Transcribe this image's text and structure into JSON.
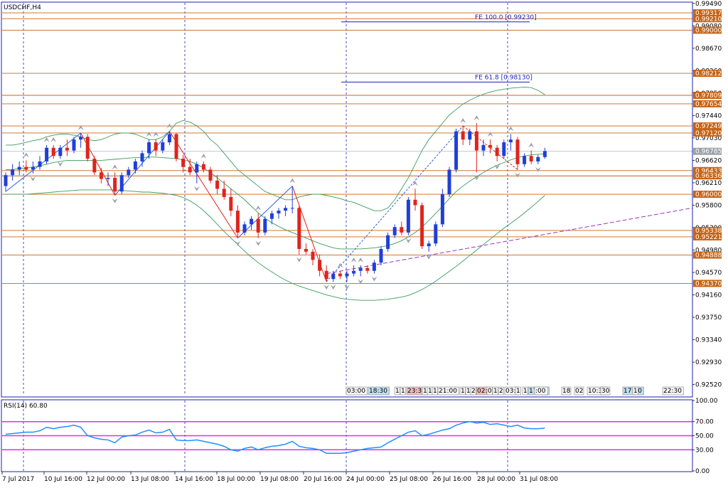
{
  "window": {
    "title": "USDCHF,H4"
  },
  "colors": {
    "background": "#ffffff",
    "frame": "#1f1fb4",
    "bull": "#1f3fd8",
    "bear": "#e0241c",
    "level": "#c86414",
    "level_label_bg": "#c86414",
    "current_price_bg": "#9aa0a8",
    "bollinger": "#3c9c5a",
    "zigzag_red": "#e0241c",
    "zigzag_blue": "#3060e0",
    "trendline": "#a030c0",
    "fe_line": "#1f1fb4",
    "rsi_line": "#1e90ff",
    "rsi_level": "#e030e0",
    "grid_dash": "#1f1fb4",
    "arrow": "#9aa0a8"
  },
  "chart_data": [
    {
      "type": "candlestick",
      "symbol": "USDCHF",
      "timeframe": "H4",
      "title": "USDCHF,H4",
      "ylim": [
        0.9232,
        0.995
      ],
      "y_ticks": [
        "0.99490",
        "0.99080",
        "0.98670",
        "0.98260",
        "0.97850",
        "0.97440",
        "0.97030",
        "0.96620",
        "0.96210",
        "0.95800",
        "0.95390",
        "0.94980",
        "0.94570",
        "0.94160",
        "0.93750",
        "0.93340",
        "0.92930",
        "0.92520"
      ],
      "x_ticks": [
        "7 Jul 2017",
        "10 Jul 16:00",
        "12 Jul 00:00",
        "13 Jul 08:00",
        "14 Jul 16:00",
        "18 Jul 00:00",
        "19 Jul 08:00",
        "20 Jul 16:00",
        "24 Jul 00:00",
        "25 Jul 08:00",
        "26 Jul 16:00",
        "28 Jul 00:00",
        "31 Jul 08:00"
      ],
      "horizontal_levels": [
        "0.99317",
        "0.99210",
        "0.99000",
        "0.98212",
        "0.97809",
        "0.97654",
        "0.97249",
        "0.97120",
        "0.96433",
        "0.96336",
        "0.96000",
        "0.95338",
        "0.95221",
        "0.94888",
        "0.94370"
      ],
      "current_price": "0.96785",
      "fe_levels": [
        {
          "label": "FE 100.0 [0.99230]",
          "value": 0.9923
        },
        {
          "label": "FE 61.8 [0.98130]",
          "value": 0.9813
        }
      ],
      "candles_ohlc": [
        [
          0.9615,
          0.964,
          0.9605,
          0.9635
        ],
        [
          0.9635,
          0.9655,
          0.9625,
          0.9645
        ],
        [
          0.9645,
          0.966,
          0.9635,
          0.965
        ],
        [
          0.965,
          0.9662,
          0.964,
          0.9645
        ],
        [
          0.9645,
          0.966,
          0.9638,
          0.965
        ],
        [
          0.965,
          0.967,
          0.9645,
          0.966
        ],
        [
          0.966,
          0.969,
          0.9655,
          0.9685
        ],
        [
          0.9685,
          0.969,
          0.9665,
          0.967
        ],
        [
          0.967,
          0.969,
          0.9665,
          0.9685
        ],
        [
          0.9685,
          0.97,
          0.967,
          0.968
        ],
        [
          0.968,
          0.9705,
          0.9675,
          0.97
        ],
        [
          0.97,
          0.9712,
          0.9685,
          0.9705
        ],
        [
          0.9705,
          0.971,
          0.966,
          0.9665
        ],
        [
          0.9665,
          0.967,
          0.9635,
          0.964
        ],
        [
          0.964,
          0.9648,
          0.962,
          0.9628
        ],
        [
          0.9628,
          0.964,
          0.9615,
          0.963
        ],
        [
          0.963,
          0.964,
          0.9598,
          0.9605
        ],
        [
          0.9605,
          0.964,
          0.96,
          0.9635
        ],
        [
          0.9635,
          0.965,
          0.963,
          0.9645
        ],
        [
          0.9645,
          0.9665,
          0.9638,
          0.966
        ],
        [
          0.966,
          0.968,
          0.965,
          0.9675
        ],
        [
          0.9675,
          0.97,
          0.9665,
          0.9695
        ],
        [
          0.9695,
          0.97,
          0.967,
          0.968
        ],
        [
          0.968,
          0.97,
          0.9675,
          0.9695
        ],
        [
          0.9695,
          0.9715,
          0.969,
          0.971
        ],
        [
          0.971,
          0.9712,
          0.966,
          0.9665
        ],
        [
          0.9665,
          0.9672,
          0.964,
          0.965
        ],
        [
          0.965,
          0.9665,
          0.9635,
          0.964
        ],
        [
          0.964,
          0.966,
          0.962,
          0.9655
        ],
        [
          0.9655,
          0.966,
          0.964,
          0.9645
        ],
        [
          0.9645,
          0.965,
          0.962,
          0.9625
        ],
        [
          0.9625,
          0.9635,
          0.96,
          0.961
        ],
        [
          0.961,
          0.9625,
          0.959,
          0.9595
        ],
        [
          0.9595,
          0.961,
          0.956,
          0.957
        ],
        [
          0.957,
          0.958,
          0.952,
          0.953
        ],
        [
          0.953,
          0.955,
          0.9525,
          0.9545
        ],
        [
          0.9545,
          0.956,
          0.9535,
          0.9555
        ],
        [
          0.9555,
          0.9565,
          0.952,
          0.953
        ],
        [
          0.953,
          0.956,
          0.9525,
          0.9555
        ],
        [
          0.9555,
          0.957,
          0.9545,
          0.9565
        ],
        [
          0.9565,
          0.9575,
          0.9555,
          0.957
        ],
        [
          0.957,
          0.958,
          0.956,
          0.9575
        ],
        [
          0.9575,
          0.9615,
          0.9565,
          0.9575
        ],
        [
          0.9575,
          0.958,
          0.949,
          0.95
        ],
        [
          0.95,
          0.951,
          0.949,
          0.9495
        ],
        [
          0.9495,
          0.95,
          0.947,
          0.948
        ],
        [
          0.948,
          0.949,
          0.945,
          0.946
        ],
        [
          0.946,
          0.947,
          0.944,
          0.9445
        ],
        [
          0.9445,
          0.946,
          0.944,
          0.9455
        ],
        [
          0.9455,
          0.946,
          0.9445,
          0.945
        ],
        [
          0.945,
          0.946,
          0.944,
          0.9455
        ],
        [
          0.9455,
          0.947,
          0.945,
          0.946
        ],
        [
          0.946,
          0.947,
          0.945,
          0.9465
        ],
        [
          0.9465,
          0.947,
          0.9455,
          0.946
        ],
        [
          0.946,
          0.948,
          0.9455,
          0.9475
        ],
        [
          0.9475,
          0.9505,
          0.947,
          0.95
        ],
        [
          0.95,
          0.953,
          0.9495,
          0.9525
        ],
        [
          0.9525,
          0.9545,
          0.952,
          0.954
        ],
        [
          0.954,
          0.955,
          0.9525,
          0.953
        ],
        [
          0.953,
          0.9595,
          0.9525,
          0.959
        ],
        [
          0.959,
          0.961,
          0.957,
          0.958
        ],
        [
          0.958,
          0.9585,
          0.95,
          0.9505
        ],
        [
          0.9505,
          0.9515,
          0.9495,
          0.951
        ],
        [
          0.951,
          0.955,
          0.9505,
          0.9545
        ],
        [
          0.9545,
          0.961,
          0.954,
          0.96
        ],
        [
          0.96,
          0.965,
          0.9595,
          0.9645
        ],
        [
          0.9645,
          0.972,
          0.964,
          0.9715
        ],
        [
          0.9715,
          0.9725,
          0.969,
          0.97
        ],
        [
          0.97,
          0.972,
          0.969,
          0.9715
        ],
        [
          0.9715,
          0.973,
          0.964,
          0.968
        ],
        [
          0.968,
          0.97,
          0.967,
          0.969
        ],
        [
          0.969,
          0.97,
          0.9675,
          0.9685
        ],
        [
          0.9685,
          0.969,
          0.966,
          0.967
        ],
        [
          0.967,
          0.97,
          0.9665,
          0.9695
        ],
        [
          0.9695,
          0.971,
          0.968,
          0.97
        ],
        [
          0.97,
          0.9705,
          0.9645,
          0.9655
        ],
        [
          0.9655,
          0.9675,
          0.965,
          0.967
        ],
        [
          0.967,
          0.968,
          0.9655,
          0.966
        ],
        [
          0.966,
          0.9672,
          0.9655,
          0.9668
        ],
        [
          0.9668,
          0.9685,
          0.9665,
          0.9679
        ]
      ],
      "bollinger_upper": [
        0.969,
        0.969,
        0.9692,
        0.9695,
        0.9698,
        0.97,
        0.9705,
        0.9708,
        0.971,
        0.971,
        0.9708,
        0.9705,
        0.97,
        0.9698,
        0.97,
        0.9705,
        0.971,
        0.9712,
        0.9712,
        0.971,
        0.9705,
        0.97,
        0.97,
        0.9705,
        0.9715,
        0.973,
        0.9735,
        0.9732,
        0.9725,
        0.9715,
        0.97,
        0.969,
        0.9675,
        0.966,
        0.9645,
        0.9635,
        0.9625,
        0.9615,
        0.9605,
        0.96,
        0.9595,
        0.959,
        0.959,
        0.9595,
        0.9598,
        0.96,
        0.96,
        0.9598,
        0.9595,
        0.9592,
        0.9588,
        0.9585,
        0.958,
        0.9575,
        0.957,
        0.957,
        0.9575,
        0.959,
        0.961,
        0.963,
        0.9655,
        0.968,
        0.97,
        0.9715,
        0.973,
        0.9745,
        0.9755,
        0.9765,
        0.9772,
        0.9778,
        0.9783,
        0.9787,
        0.979,
        0.9792,
        0.9794,
        0.9795,
        0.9796,
        0.9795,
        0.979,
        0.9782
      ],
      "bollinger_middle": [
        0.9645,
        0.9645,
        0.9647,
        0.9648,
        0.965,
        0.9652,
        0.9655,
        0.9658,
        0.966,
        0.9662,
        0.9662,
        0.9662,
        0.9662,
        0.9662,
        0.9662,
        0.9663,
        0.9664,
        0.9665,
        0.9666,
        0.9667,
        0.9667,
        0.9668,
        0.9668,
        0.9667,
        0.9666,
        0.9665,
        0.9663,
        0.966,
        0.9655,
        0.9648,
        0.964,
        0.963,
        0.962,
        0.961,
        0.96,
        0.959,
        0.9578,
        0.9566,
        0.9556,
        0.9548,
        0.9541,
        0.9535,
        0.953,
        0.9525,
        0.952,
        0.9515,
        0.951,
        0.9506,
        0.9502,
        0.95,
        0.95,
        0.95,
        0.95,
        0.9501,
        0.9502,
        0.9504,
        0.9506,
        0.951,
        0.9515,
        0.9522,
        0.953,
        0.954,
        0.9552,
        0.9565,
        0.9578,
        0.9592,
        0.9605,
        0.9615,
        0.9624,
        0.9632,
        0.964,
        0.9647,
        0.9653,
        0.9658,
        0.9663,
        0.9667,
        0.967,
        0.9672,
        0.9673,
        0.9674
      ],
      "bollinger_lower": [
        0.96,
        0.96,
        0.96,
        0.96,
        0.9601,
        0.9602,
        0.9603,
        0.9604,
        0.9605,
        0.9606,
        0.9607,
        0.9608,
        0.9608,
        0.9608,
        0.9608,
        0.9608,
        0.9608,
        0.9607,
        0.9606,
        0.9605,
        0.9604,
        0.9604,
        0.9603,
        0.9602,
        0.96,
        0.9598,
        0.9594,
        0.9588,
        0.958,
        0.957,
        0.9558,
        0.9545,
        0.9532,
        0.952,
        0.9508,
        0.9496,
        0.9485,
        0.9475,
        0.9466,
        0.9458,
        0.945,
        0.9443,
        0.9437,
        0.9432,
        0.9428,
        0.9424,
        0.942,
        0.9416,
        0.9413,
        0.941,
        0.9408,
        0.9407,
        0.9406,
        0.9406,
        0.9406,
        0.9407,
        0.9408,
        0.941,
        0.9412,
        0.9415,
        0.942,
        0.9426,
        0.9433,
        0.9441,
        0.945,
        0.9459,
        0.9468,
        0.9478,
        0.9488,
        0.9498,
        0.9508,
        0.9518,
        0.9528,
        0.9538,
        0.9547,
        0.9556,
        0.9566,
        0.9576,
        0.9587,
        0.9598
      ],
      "zigzag": [
        [
          0,
          0.9605
        ],
        [
          11,
          0.9712
        ],
        [
          16,
          0.9598
        ],
        [
          24,
          0.9715
        ],
        [
          34,
          0.952
        ],
        [
          42,
          0.9615
        ],
        [
          47,
          0.944
        ],
        [
          67,
          0.9725
        ],
        [
          75,
          0.9645
        ]
      ],
      "trendline": [
        [
          47,
          0.9455
        ],
        [
          85,
          0.9575
        ]
      ]
    },
    {
      "type": "line",
      "title": "RSI(14) 60.80",
      "ylim": [
        0,
        100
      ],
      "y_ticks": [
        "100.00",
        "70.00",
        "50.00",
        "30.00",
        "0.00"
      ],
      "levels": [
        70,
        50,
        30
      ],
      "values": [
        52,
        53,
        54,
        55,
        55,
        57,
        62,
        60,
        62,
        63,
        65,
        62,
        50,
        47,
        45,
        44,
        40,
        48,
        50,
        51,
        55,
        58,
        54,
        55,
        59,
        44,
        43,
        43,
        44,
        42,
        40,
        38,
        35,
        30,
        28,
        32,
        34,
        30,
        33,
        35,
        36,
        38,
        42,
        35,
        33,
        32,
        30,
        25,
        25,
        25,
        26,
        28,
        30,
        32,
        33,
        34,
        40,
        45,
        50,
        55,
        57,
        50,
        52,
        55,
        58,
        60,
        65,
        68,
        70,
        68,
        69,
        66,
        67,
        65,
        63,
        65,
        61,
        60,
        60,
        60.8
      ]
    }
  ],
  "time_labels": [
    "03:00",
    "18:30",
    "1",
    "1",
    "23:30",
    "1",
    "1",
    "1",
    "21:00",
    "1",
    "1",
    "2",
    "02:",
    "0",
    "1",
    "2",
    "03:",
    "1",
    "1",
    "17:30",
    ":00",
    "18",
    "02",
    "10:30",
    "30",
    "17:30",
    "1",
    "22:30"
  ]
}
